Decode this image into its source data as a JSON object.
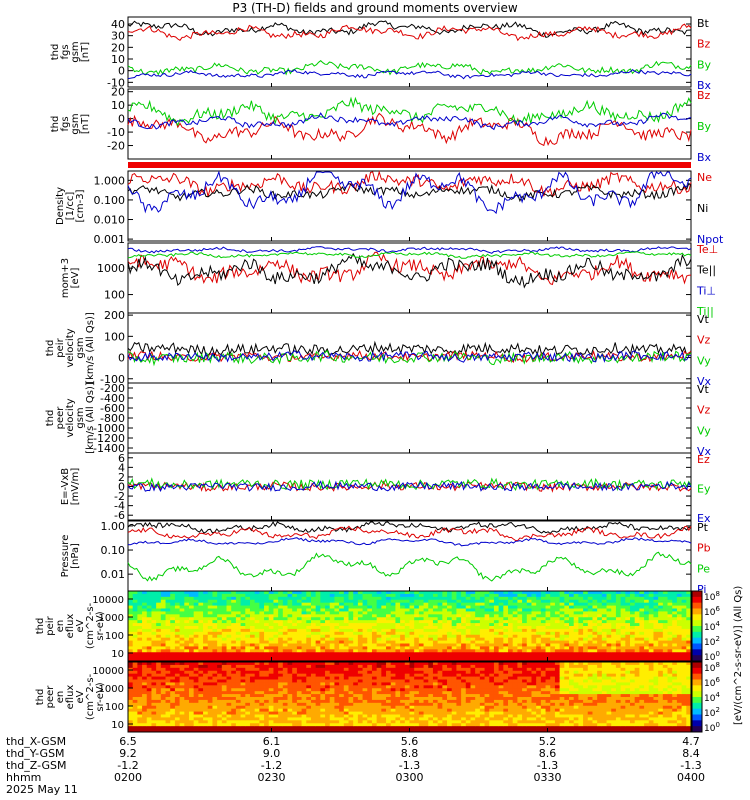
{
  "title": "P3 (TH-D) fields and ground moments overview",
  "colors": {
    "black": "#000000",
    "red": "#dd0000",
    "green": "#00cc00",
    "blue": "#0000cc",
    "axis_red": "#ee0000"
  },
  "chart_data": [
    {
      "type": "line",
      "id": "fgs-total",
      "ylabel_lines": [
        "thd",
        "fgs",
        "gsm",
        "[nT]"
      ],
      "yticks": [
        -10,
        0,
        10,
        20,
        30,
        40
      ],
      "ylim": [
        -14,
        46
      ],
      "series": [
        {
          "name": "Bt",
          "color": "#000000",
          "base": 36,
          "amp": 6,
          "noise": 2.5
        },
        {
          "name": "Bz",
          "color": "#dd0000",
          "base": 33,
          "amp": 6,
          "noise": 2.5
        },
        {
          "name": "By",
          "color": "#00cc00",
          "base": 2,
          "amp": 5,
          "noise": 2.5
        },
        {
          "name": "Bx",
          "color": "#0000cc",
          "base": -3,
          "amp": 3,
          "noise": 1.5
        }
      ]
    },
    {
      "type": "line",
      "id": "fgs-components",
      "ylabel_lines": [
        "thd",
        "fgs",
        "gsm",
        "[nT]"
      ],
      "yticks": [
        -20,
        -10,
        0,
        10,
        20
      ],
      "ylim": [
        -30,
        22
      ],
      "series": [
        {
          "name": "Bz",
          "color": "#dd0000",
          "base": -8,
          "amp": 10,
          "noise": 4
        },
        {
          "name": "By",
          "color": "#00cc00",
          "base": 5,
          "amp": 8,
          "noise": 4
        },
        {
          "name": "Bx",
          "color": "#0000cc",
          "base": -2,
          "amp": 5,
          "noise": 2
        }
      ]
    },
    {
      "type": "line",
      "id": "density",
      "log": true,
      "ylabel_lines": [
        "Density",
        "[1/cc]",
        "[cm-3]"
      ],
      "yticks": [
        "0.001",
        "0.010",
        "0.100",
        "1.000"
      ],
      "ylim": [
        0.0008,
        3
      ],
      "series": [
        {
          "name": "Ne",
          "color": "#dd0000",
          "base": 0.7,
          "amp": 0.5,
          "noise": 0.3
        },
        {
          "name": "Ni",
          "color": "#000000",
          "base": 0.25,
          "amp": 0.3,
          "noise": 0.2
        },
        {
          "name": "Npot",
          "color": "#0000cc",
          "base": 0.3,
          "amp": 1.2,
          "noise": 0.3
        }
      ]
    },
    {
      "type": "line",
      "id": "temperature",
      "log": true,
      "ylabel_lines": [
        "mom+3",
        "[eV]"
      ],
      "yticks": [
        "100",
        "1000"
      ],
      "ylim": [
        20,
        9000
      ],
      "series": [
        {
          "name": "Te⊥",
          "color": "#dd0000",
          "base": 900,
          "amp": 0.5,
          "noise": 0.25
        },
        {
          "name": "Te||",
          "color": "#000000",
          "base": 800,
          "amp": 0.5,
          "noise": 0.25
        },
        {
          "name": "Ti⊥",
          "color": "#0000cc",
          "base": 5000,
          "amp": 0.1,
          "noise": 0.05
        },
        {
          "name": "Ti||",
          "color": "#00cc00",
          "base": 3200,
          "amp": 0.1,
          "noise": 0.05
        }
      ]
    },
    {
      "type": "line",
      "id": "peir-velocity",
      "ylabel_lines": [
        "thd",
        "peir",
        "velocity",
        "gsm",
        "[km/s (All Qs)]"
      ],
      "yticks": [
        -100,
        0,
        100,
        200
      ],
      "ylim": [
        -120,
        210
      ],
      "series": [
        {
          "name": "Vt",
          "color": "#000000",
          "base": 40,
          "amp": 10,
          "noise": 25
        },
        {
          "name": "Vz",
          "color": "#dd0000",
          "base": 5,
          "amp": 10,
          "noise": 20
        },
        {
          "name": "Vy",
          "color": "#00cc00",
          "base": 0,
          "amp": 10,
          "noise": 25
        },
        {
          "name": "Vx",
          "color": "#0000cc",
          "base": 5,
          "amp": 10,
          "noise": 20
        }
      ]
    },
    {
      "type": "line",
      "id": "peer-velocity",
      "ylabel_lines": [
        "thd",
        "peer",
        "velocity",
        "gsm",
        "[km/s (All Qs)]"
      ],
      "yticks": [
        -1400,
        -1200,
        -1000,
        -800,
        -600,
        -400,
        -200
      ],
      "ylim": [
        -1500,
        -100
      ],
      "series": [
        {
          "name": "Vt",
          "color": "#000000"
        },
        {
          "name": "Vz",
          "color": "#dd0000"
        },
        {
          "name": "Vy",
          "color": "#00cc00"
        },
        {
          "name": "Vx",
          "color": "#0000cc"
        }
      ]
    },
    {
      "type": "line",
      "id": "efield",
      "ylabel_lines": [
        "E=-VxB",
        "[mV/m]"
      ],
      "yticks": [
        -6,
        -4,
        -2,
        0,
        2,
        4,
        6
      ],
      "ylim": [
        -7,
        7
      ],
      "series": [
        {
          "name": "Ez",
          "color": "#dd0000",
          "base": 0,
          "amp": 0.3,
          "noise": 0.8
        },
        {
          "name": "Ey",
          "color": "#00cc00",
          "base": 0.5,
          "amp": 0.3,
          "noise": 1.0
        },
        {
          "name": "Ex",
          "color": "#0000cc",
          "base": 0,
          "amp": 0.3,
          "noise": 0.8
        }
      ]
    },
    {
      "type": "line",
      "id": "pressure",
      "log": true,
      "ylabel_lines": [
        "Pressure",
        "[nPa]"
      ],
      "yticks": [
        "0.01",
        "0.10",
        "1.00"
      ],
      "ylim": [
        0.002,
        1.6
      ],
      "series": [
        {
          "name": "Pt",
          "color": "#000000",
          "base": 0.9,
          "amp": 0.2,
          "noise": 0.1
        },
        {
          "name": "Pb",
          "color": "#dd0000",
          "base": 0.5,
          "amp": 0.25,
          "noise": 0.1
        },
        {
          "name": "Pe",
          "color": "#00cc00",
          "base": 0.02,
          "amp": 0.6,
          "noise": 0.1
        },
        {
          "name": "Pi",
          "color": "#0000cc",
          "base": 0.22,
          "amp": 0.15,
          "noise": 0.05
        }
      ]
    },
    {
      "type": "heatmap",
      "id": "peir-spectrogram",
      "ylabel_lines": [
        "thd",
        "peir",
        "en",
        "eflux",
        "eV",
        "(cm^2-s-",
        "sr-eV)"
      ],
      "yticks": [
        "10",
        "100",
        "1000",
        "10000"
      ]
    },
    {
      "type": "heatmap",
      "id": "peer-spectrogram",
      "ylabel_lines": [
        "thd",
        "peer",
        "en",
        "eflux",
        "eV",
        "(cm^2-s-",
        "sr-eV)"
      ],
      "yticks": [
        "10",
        "100",
        "1000",
        "10000"
      ]
    }
  ],
  "colorbar": {
    "label": "[eV/(cm^2-s-sr-eV)] (All Qs)",
    "label_secondary": "[eV/(cm^2-s-sr-eV)]",
    "ticks": [
      "10^0",
      "10^2",
      "10^4",
      "10^6",
      "10^8"
    ]
  },
  "time_axis": {
    "rows": [
      {
        "label": "thd_X-GSM",
        "values": [
          "6.5",
          "6.1",
          "5.6",
          "5.2",
          "4.7"
        ]
      },
      {
        "label": "thd_Y-GSM",
        "values": [
          "9.2",
          "9.0",
          "8.8",
          "8.6",
          "8.4"
        ]
      },
      {
        "label": "thd_Z-GSM",
        "values": [
          "-1.2",
          "-1.2",
          "-1.3",
          "-1.3",
          "-1.3"
        ]
      },
      {
        "label": "hhmm",
        "values": [
          "0200",
          "0230",
          "0300",
          "0330",
          "0400"
        ]
      }
    ],
    "date": "2025 May 11"
  }
}
